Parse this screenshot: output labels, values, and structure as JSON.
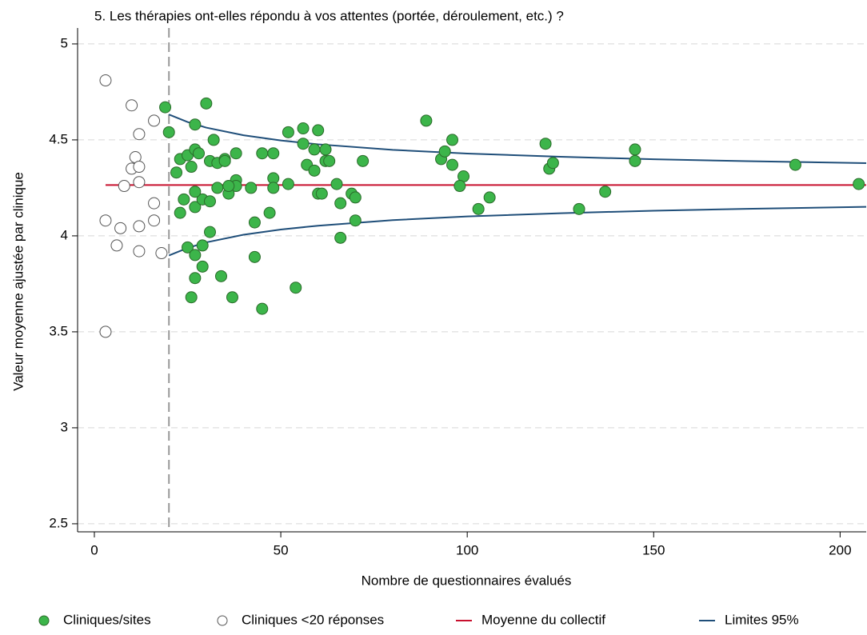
{
  "chart_data": {
    "type": "scatter",
    "title": "5. Les thérapies ont-elles répondu à vos attentes (portée, déroulement, etc.) ?",
    "x_label": "Nombre de questionnaires évalués",
    "y_label": "Valeur moyenne ajustée par clinique",
    "xlim": [
      -4.5,
      207
    ],
    "ylim": [
      2.458,
      5.083
    ],
    "xticks": [
      0,
      50,
      100,
      150,
      200
    ],
    "yticks": [
      2.5,
      3,
      3.5,
      4,
      4.5,
      5
    ],
    "grid": true,
    "threshold_x": 20,
    "legend": "bottom",
    "series": [
      {
        "name": "Cliniques/sites",
        "kind": "scatter",
        "color": "#3cb54a",
        "x": [
          19,
          30,
          20,
          27,
          22,
          23,
          25,
          26,
          27,
          28,
          32,
          31,
          33,
          35,
          35,
          38,
          38,
          38,
          36,
          33,
          36,
          24,
          27,
          29,
          27,
          31,
          23,
          31,
          25,
          29,
          27,
          29,
          27,
          34,
          26,
          37,
          42,
          43,
          43,
          45,
          48,
          48,
          48,
          47,
          45,
          52,
          52,
          54,
          56,
          56,
          57,
          59,
          59,
          60,
          62,
          62,
          63,
          60,
          61,
          65,
          66,
          66,
          69,
          70,
          70,
          72,
          89,
          93,
          94,
          96,
          96,
          99,
          98,
          103,
          106,
          121,
          122,
          123,
          130,
          137,
          145,
          145,
          188,
          205
        ],
        "values": [
          4.67,
          4.69,
          4.54,
          4.58,
          4.33,
          4.4,
          4.42,
          4.36,
          4.45,
          4.43,
          4.5,
          4.39,
          4.38,
          4.4,
          4.39,
          4.43,
          4.29,
          4.26,
          4.22,
          4.25,
          4.26,
          4.19,
          4.15,
          4.19,
          4.23,
          4.18,
          4.12,
          4.02,
          3.94,
          3.95,
          3.9,
          3.84,
          3.78,
          3.79,
          3.68,
          3.68,
          4.25,
          4.07,
          3.89,
          4.43,
          4.43,
          4.3,
          4.25,
          4.12,
          3.62,
          4.54,
          4.27,
          3.73,
          4.56,
          4.48,
          4.37,
          4.34,
          4.45,
          4.55,
          4.45,
          4.39,
          4.39,
          4.22,
          4.22,
          4.27,
          3.99,
          4.17,
          4.22,
          4.2,
          4.08,
          4.39,
          4.6,
          4.4,
          4.44,
          4.5,
          4.37,
          4.31,
          4.26,
          4.14,
          4.2,
          4.48,
          4.35,
          4.38,
          4.14,
          4.23,
          4.45,
          4.39,
          4.37,
          4.27
        ]
      },
      {
        "name": "Cliniques <20 réponses",
        "kind": "scatter",
        "color": "#ffffff",
        "x": [
          3,
          10,
          16,
          12,
          11,
          10,
          12,
          12,
          8,
          16,
          3,
          16,
          7,
          12,
          6,
          12,
          18,
          3
        ],
        "values": [
          4.81,
          4.68,
          4.6,
          4.53,
          4.41,
          4.35,
          4.36,
          4.28,
          4.26,
          4.17,
          4.08,
          4.08,
          4.04,
          4.05,
          3.95,
          3.92,
          3.91,
          3.5
        ]
      },
      {
        "name": "Moyenne du collectif",
        "kind": "line",
        "color": "#c8102e",
        "x": [
          3,
          207
        ],
        "values": [
          4.265,
          4.265
        ]
      },
      {
        "name": "Limites 95%",
        "kind": "band",
        "color": "#1f4e79",
        "x": [
          20,
          25,
          30,
          40,
          50,
          60,
          80,
          100,
          125,
          150,
          175,
          207
        ],
        "upper": [
          4.632,
          4.593,
          4.564,
          4.524,
          4.497,
          4.477,
          4.448,
          4.429,
          4.412,
          4.399,
          4.389,
          4.379
        ],
        "lower": [
          3.898,
          3.937,
          3.966,
          4.006,
          4.033,
          4.053,
          4.082,
          4.101,
          4.118,
          4.131,
          4.141,
          4.151
        ]
      }
    ]
  }
}
